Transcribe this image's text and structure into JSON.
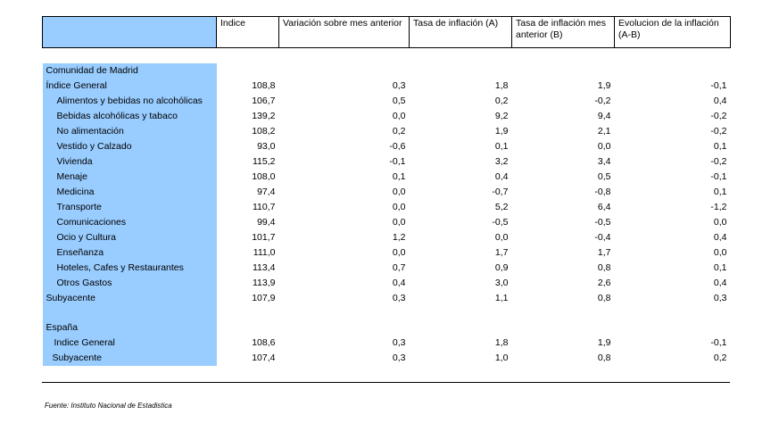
{
  "headers": [
    "",
    "Indice",
    "Variación sobre mes anterior",
    "Tasa de inflación (A)",
    "Tasa de inflación mes anterior (B)",
    "Evolucion de la inflación (A-B)"
  ],
  "section1": {
    "title": "Comunidad de Madrid",
    "rows": [
      {
        "label": "Índice General",
        "v": [
          "108,8",
          "0,3",
          "1,8",
          "1,9",
          "-0,1"
        ],
        "ind": ""
      },
      {
        "label": "Alimentos y bebidas no alcohólicas",
        "v": [
          "106,7",
          "0,5",
          "0,2",
          "-0,2",
          "0,4"
        ],
        "ind": "ind"
      },
      {
        "label": "Bebidas alcohólicas y tabaco",
        "v": [
          "139,2",
          "0,0",
          "9,2",
          "9,4",
          "-0,2"
        ],
        "ind": "ind"
      },
      {
        "label": "No alimentación",
        "v": [
          "108,2",
          "0,2",
          "1,9",
          "2,1",
          "-0,2"
        ],
        "ind": "ind"
      },
      {
        "label": "Vestido y Calzado",
        "v": [
          "93,0",
          "-0,6",
          "0,1",
          "0,0",
          "0,1"
        ],
        "ind": "ind"
      },
      {
        "label": "Vivienda",
        "v": [
          "115,2",
          "-0,1",
          "3,2",
          "3,4",
          "-0,2"
        ],
        "ind": "ind"
      },
      {
        "label": "Menaje",
        "v": [
          "108,0",
          "0,1",
          "0,4",
          "0,5",
          "-0,1"
        ],
        "ind": "ind"
      },
      {
        "label": "Medicina",
        "v": [
          "97,4",
          "0,0",
          "-0,7",
          "-0,8",
          "0,1"
        ],
        "ind": "ind"
      },
      {
        "label": "Transporte",
        "v": [
          "110,7",
          "0,0",
          "5,2",
          "6,4",
          "-1,2"
        ],
        "ind": "ind"
      },
      {
        "label": "Comunicaciones",
        "v": [
          "99,4",
          "0,0",
          "-0,5",
          "-0,5",
          "0,0"
        ],
        "ind": "ind"
      },
      {
        "label": "Ocio y Cultura",
        "v": [
          "101,7",
          "1,2",
          "0,0",
          "-0,4",
          "0,4"
        ],
        "ind": "ind"
      },
      {
        "label": "Enseñanza",
        "v": [
          "111,0",
          "0,0",
          "1,7",
          "1,7",
          "0,0"
        ],
        "ind": "ind"
      },
      {
        "label": "Hoteles, Cafes y Restaurantes",
        "v": [
          "113,4",
          "0,7",
          "0,9",
          "0,8",
          "0,1"
        ],
        "ind": "ind"
      },
      {
        "label": "Otros Gastos",
        "v": [
          "113,9",
          "0,4",
          "3,0",
          "2,6",
          "0,4"
        ],
        "ind": "ind"
      },
      {
        "label": "Subyacente",
        "v": [
          "107,9",
          "0,3",
          "1,1",
          "0,8",
          "0,3"
        ],
        "ind": ""
      }
    ]
  },
  "section2": {
    "title": "España",
    "rows": [
      {
        "label": "Indice General",
        "v": [
          "108,6",
          "0,3",
          "1,8",
          "1,9",
          "-0,1"
        ],
        "ind": "ind2"
      },
      {
        "label": "Subyacente",
        "v": [
          "107,4",
          "0,3",
          "1,0",
          "0,8",
          "0,2"
        ],
        "ind": "ind3"
      }
    ]
  },
  "source": "Fuente: Instituto Nacional de Estadistica"
}
